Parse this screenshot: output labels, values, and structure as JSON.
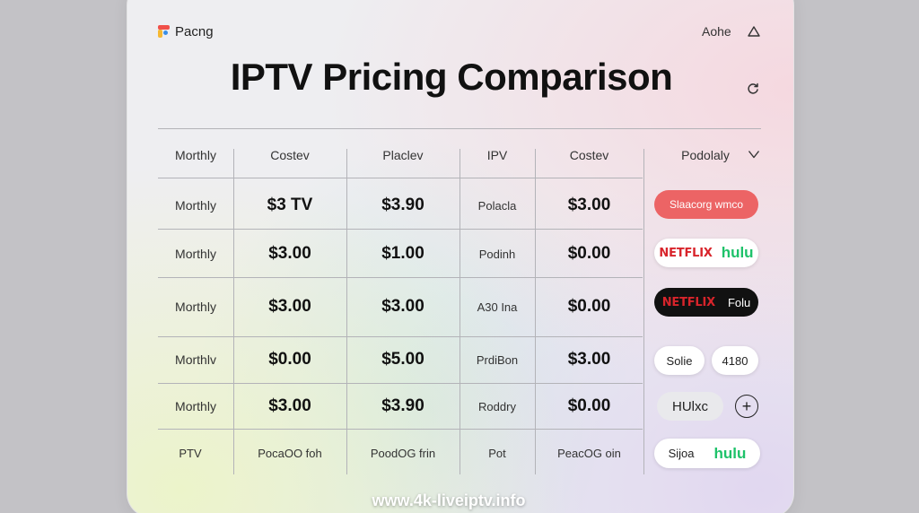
{
  "header": {
    "brand": "Pacng",
    "top_link": "Aohe",
    "title": "IPTV Pricing Comparison"
  },
  "table": {
    "columns": [
      "Morthly",
      "Costev",
      "Placlev",
      "IPV",
      "Costev",
      "Podolaly"
    ],
    "rows": [
      [
        "Morthly",
        "$3 TV",
        "$3.90",
        "Polacla",
        "$3.00"
      ],
      [
        "Morthly",
        "$3.00",
        "$1.00",
        "Podinh",
        "$0.00"
      ],
      [
        "Morthly",
        "$3.00",
        "$3.00",
        "A30 Ina",
        "$0.00"
      ],
      [
        "Morthlv",
        "$0.00",
        "$5.00",
        "PrdiBon",
        "$3.00"
      ],
      [
        "Morthly",
        "$3.00",
        "$3.90",
        "Roddry",
        "$0.00"
      ],
      [
        "PTV",
        "PocaOO foh",
        "PoodOG frin",
        "Pot",
        "PeacOG oin"
      ]
    ],
    "actions": {
      "row1_pill": "Slaacorg wmco",
      "row2_netflix": "NETFLIX",
      "row2_hulu": "hulu",
      "row3_netflix": "NETFLIX",
      "row3_label": "Folu",
      "row4_left": "Solie",
      "row4_right": "4180",
      "row5_label": "HUlxc",
      "row6_label": "Sijoa",
      "row6_hulu": "hulu"
    }
  },
  "footer": {
    "url": "www.4k-liveiptv.info"
  },
  "icons": {
    "top_right": "user-icon",
    "side": "refresh-icon",
    "dropdown": "chevron-down-icon",
    "add": "plus-icon"
  },
  "colors": {
    "accent_red": "#ec6465",
    "netflix_red": "#d8242b",
    "hulu_green": "#1ec26a"
  }
}
